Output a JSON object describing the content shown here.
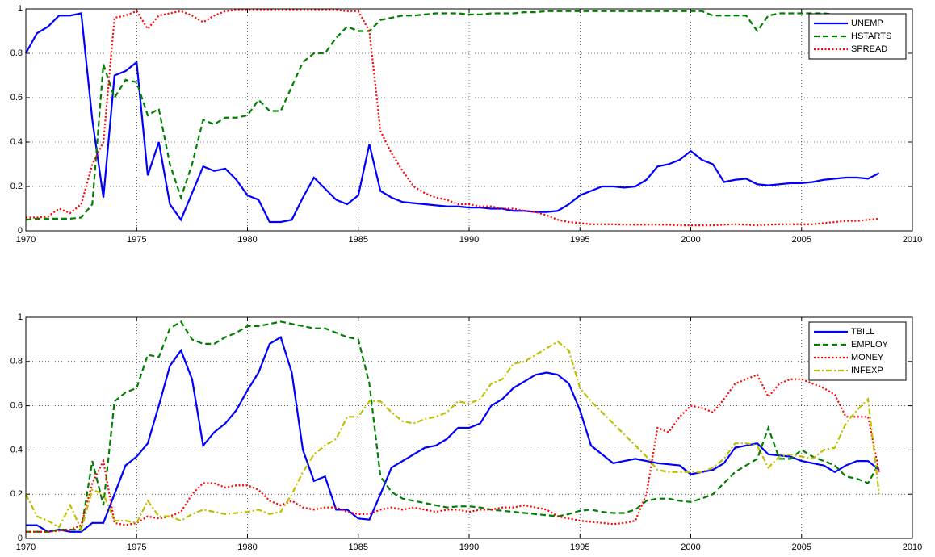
{
  "chart_data": [
    {
      "type": "line",
      "legend": "upper right",
      "grid": true,
      "xlim": [
        1970,
        2010
      ],
      "xticks": [
        1970,
        1975,
        1980,
        1985,
        1990,
        1995,
        2000,
        2005,
        2010
      ],
      "ylim": [
        0,
        1
      ],
      "yticks": [
        0,
        0.2,
        0.4,
        0.6,
        0.8,
        1
      ],
      "x": [
        1970,
        1970.5,
        1971,
        1971.5,
        1972,
        1972.5,
        1973,
        1973.5,
        1974,
        1974.5,
        1975,
        1975.5,
        1976,
        1976.5,
        1977,
        1977.5,
        1978,
        1978.5,
        1979,
        1979.5,
        1980,
        1980.5,
        1981,
        1981.5,
        1982,
        1982.5,
        1983,
        1983.5,
        1984,
        1984.5,
        1985,
        1985.5,
        1986,
        1986.5,
        1987,
        1987.5,
        1988,
        1988.5,
        1989,
        1989.5,
        1990,
        1990.5,
        1991,
        1991.5,
        1992,
        1992.5,
        1993,
        1993.5,
        1994,
        1994.5,
        1995,
        1995.5,
        1996,
        1996.5,
        1997,
        1997.5,
        1998,
        1998.5,
        1999,
        1999.5,
        2000,
        2000.5,
        2001,
        2001.5,
        2002,
        2002.5,
        2003,
        2003.5,
        2004,
        2004.5,
        2005,
        2005.5,
        2006,
        2006.5,
        2007,
        2007.5,
        2008,
        2008.5
      ],
      "series": [
        {
          "name": "UNEMP",
          "color": "#0000ff",
          "dash": "solid",
          "values": [
            0.8,
            0.89,
            0.92,
            0.97,
            0.97,
            0.98,
            0.5,
            0.15,
            0.7,
            0.72,
            0.76,
            0.25,
            0.4,
            0.12,
            0.05,
            0.17,
            0.29,
            0.27,
            0.28,
            0.23,
            0.16,
            0.14,
            0.04,
            0.04,
            0.05,
            0.15,
            0.24,
            0.19,
            0.14,
            0.12,
            0.16,
            0.39,
            0.18,
            0.15,
            0.13,
            0.125,
            0.12,
            0.115,
            0.11,
            0.11,
            0.105,
            0.105,
            0.1,
            0.1,
            0.09,
            0.09,
            0.085,
            0.085,
            0.09,
            0.12,
            0.16,
            0.18,
            0.2,
            0.2,
            0.195,
            0.2,
            0.23,
            0.29,
            0.3,
            0.32,
            0.36,
            0.32,
            0.3,
            0.22,
            0.23,
            0.235,
            0.21,
            0.205,
            0.21,
            0.215,
            0.215,
            0.22,
            0.23,
            0.235,
            0.24,
            0.24,
            0.235,
            0.26
          ]
        },
        {
          "name": "HSTARTS",
          "color": "#008000",
          "dash": "dashed",
          "values": [
            0.05,
            0.055,
            0.055,
            0.055,
            0.055,
            0.06,
            0.12,
            0.75,
            0.6,
            0.68,
            0.67,
            0.52,
            0.55,
            0.3,
            0.15,
            0.3,
            0.5,
            0.48,
            0.51,
            0.51,
            0.52,
            0.59,
            0.54,
            0.54,
            0.65,
            0.76,
            0.8,
            0.8,
            0.87,
            0.92,
            0.9,
            0.9,
            0.95,
            0.96,
            0.97,
            0.97,
            0.975,
            0.98,
            0.98,
            0.98,
            0.975,
            0.975,
            0.98,
            0.98,
            0.98,
            0.985,
            0.985,
            0.99,
            0.99,
            0.99,
            0.99,
            0.99,
            0.99,
            0.99,
            0.99,
            0.99,
            0.99,
            0.99,
            0.99,
            0.99,
            0.99,
            0.99,
            0.97,
            0.97,
            0.97,
            0.97,
            0.9,
            0.97,
            0.98,
            0.98,
            0.98,
            0.98,
            0.98,
            0.975,
            0.975,
            0.97,
            0.96,
            0.95
          ]
        },
        {
          "name": "SPREAD",
          "color": "#ff0000",
          "dash": "dotted",
          "values": [
            0.06,
            0.06,
            0.065,
            0.1,
            0.08,
            0.12,
            0.3,
            0.4,
            0.96,
            0.97,
            0.99,
            0.91,
            0.97,
            0.98,
            0.99,
            0.97,
            0.94,
            0.97,
            0.99,
            0.995,
            0.995,
            0.995,
            0.995,
            0.995,
            0.995,
            0.995,
            0.995,
            0.995,
            0.995,
            0.99,
            0.99,
            0.9,
            0.45,
            0.35,
            0.27,
            0.2,
            0.17,
            0.15,
            0.14,
            0.12,
            0.12,
            0.11,
            0.11,
            0.1,
            0.1,
            0.09,
            0.085,
            0.07,
            0.05,
            0.04,
            0.035,
            0.03,
            0.03,
            0.03,
            0.028,
            0.028,
            0.028,
            0.028,
            0.028,
            0.025,
            0.025,
            0.025,
            0.025,
            0.028,
            0.03,
            0.028,
            0.025,
            0.028,
            0.03,
            0.03,
            0.03,
            0.03,
            0.035,
            0.04,
            0.045,
            0.045,
            0.05,
            0.055
          ]
        }
      ]
    },
    {
      "type": "line",
      "legend": "upper right",
      "grid": true,
      "xlim": [
        1970,
        2010
      ],
      "xticks": [
        1970,
        1975,
        1980,
        1985,
        1990,
        1995,
        2000,
        2005,
        2010
      ],
      "ylim": [
        0,
        1
      ],
      "yticks": [
        0,
        0.2,
        0.4,
        0.6,
        0.8,
        1
      ],
      "x": [
        1970,
        1970.5,
        1971,
        1971.5,
        1972,
        1972.5,
        1973,
        1973.5,
        1974,
        1974.5,
        1975,
        1975.5,
        1976,
        1976.5,
        1977,
        1977.5,
        1978,
        1978.5,
        1979,
        1979.5,
        1980,
        1980.5,
        1981,
        1981.5,
        1982,
        1982.5,
        1983,
        1983.5,
        1984,
        1984.5,
        1985,
        1985.5,
        1986,
        1986.5,
        1987,
        1987.5,
        1988,
        1988.5,
        1989,
        1989.5,
        1990,
        1990.5,
        1991,
        1991.5,
        1992,
        1992.5,
        1993,
        1993.5,
        1994,
        1994.5,
        1995,
        1995.5,
        1996,
        1996.5,
        1997,
        1997.5,
        1998,
        1998.5,
        1999,
        1999.5,
        2000,
        2000.5,
        2001,
        2001.5,
        2002,
        2002.5,
        2003,
        2003.5,
        2004,
        2004.5,
        2005,
        2005.5,
        2006,
        2006.5,
        2007,
        2007.5,
        2008,
        2008.5
      ],
      "series": [
        {
          "name": "TBILL",
          "color": "#0000ff",
          "dash": "solid",
          "values": [
            0.06,
            0.06,
            0.03,
            0.04,
            0.03,
            0.03,
            0.07,
            0.07,
            0.2,
            0.33,
            0.37,
            0.43,
            0.6,
            0.78,
            0.85,
            0.72,
            0.42,
            0.48,
            0.52,
            0.58,
            0.67,
            0.75,
            0.88,
            0.91,
            0.75,
            0.4,
            0.26,
            0.28,
            0.13,
            0.13,
            0.09,
            0.085,
            0.2,
            0.32,
            0.35,
            0.38,
            0.41,
            0.42,
            0.45,
            0.5,
            0.5,
            0.52,
            0.6,
            0.63,
            0.68,
            0.71,
            0.74,
            0.75,
            0.74,
            0.7,
            0.58,
            0.42,
            0.38,
            0.34,
            0.35,
            0.36,
            0.35,
            0.34,
            0.335,
            0.33,
            0.29,
            0.3,
            0.31,
            0.34,
            0.41,
            0.42,
            0.43,
            0.38,
            0.375,
            0.37,
            0.35,
            0.34,
            0.33,
            0.3,
            0.33,
            0.35,
            0.35,
            0.31
          ]
        },
        {
          "name": "EMPLOY",
          "color": "#008000",
          "dash": "dashed",
          "values": [
            0.03,
            0.03,
            0.03,
            0.04,
            0.04,
            0.04,
            0.35,
            0.15,
            0.62,
            0.66,
            0.68,
            0.83,
            0.82,
            0.95,
            0.98,
            0.9,
            0.88,
            0.88,
            0.91,
            0.93,
            0.96,
            0.96,
            0.97,
            0.98,
            0.97,
            0.96,
            0.95,
            0.95,
            0.93,
            0.91,
            0.9,
            0.7,
            0.28,
            0.21,
            0.18,
            0.17,
            0.16,
            0.15,
            0.14,
            0.145,
            0.145,
            0.14,
            0.13,
            0.125,
            0.12,
            0.115,
            0.11,
            0.105,
            0.1,
            0.11,
            0.125,
            0.13,
            0.12,
            0.115,
            0.115,
            0.13,
            0.17,
            0.18,
            0.18,
            0.17,
            0.165,
            0.18,
            0.2,
            0.25,
            0.3,
            0.33,
            0.36,
            0.5,
            0.36,
            0.36,
            0.4,
            0.37,
            0.35,
            0.33,
            0.28,
            0.27,
            0.25,
            0.34
          ]
        },
        {
          "name": "MONEY",
          "color": "#ff0000",
          "dash": "dotted",
          "values": [
            0.03,
            0.03,
            0.03,
            0.035,
            0.04,
            0.06,
            0.25,
            0.35,
            0.07,
            0.06,
            0.07,
            0.1,
            0.09,
            0.1,
            0.12,
            0.2,
            0.25,
            0.25,
            0.23,
            0.24,
            0.24,
            0.22,
            0.17,
            0.15,
            0.17,
            0.14,
            0.13,
            0.14,
            0.14,
            0.12,
            0.11,
            0.11,
            0.13,
            0.14,
            0.13,
            0.14,
            0.13,
            0.12,
            0.13,
            0.13,
            0.12,
            0.13,
            0.13,
            0.14,
            0.14,
            0.15,
            0.14,
            0.13,
            0.1,
            0.09,
            0.08,
            0.075,
            0.07,
            0.065,
            0.07,
            0.08,
            0.2,
            0.5,
            0.48,
            0.55,
            0.6,
            0.59,
            0.57,
            0.63,
            0.7,
            0.72,
            0.74,
            0.64,
            0.7,
            0.72,
            0.72,
            0.7,
            0.68,
            0.65,
            0.55,
            0.55,
            0.55,
            0.3
          ]
        },
        {
          "name": "INFEXP",
          "color": "#bfbf00",
          "dash": "dashdot",
          "values": [
            0.2,
            0.1,
            0.08,
            0.05,
            0.15,
            0.04,
            0.22,
            0.2,
            0.08,
            0.08,
            0.07,
            0.17,
            0.1,
            0.1,
            0.08,
            0.11,
            0.13,
            0.12,
            0.11,
            0.115,
            0.12,
            0.13,
            0.11,
            0.12,
            0.2,
            0.3,
            0.38,
            0.42,
            0.45,
            0.55,
            0.55,
            0.62,
            0.62,
            0.57,
            0.53,
            0.52,
            0.54,
            0.55,
            0.57,
            0.62,
            0.61,
            0.63,
            0.7,
            0.72,
            0.79,
            0.8,
            0.83,
            0.86,
            0.89,
            0.85,
            0.68,
            0.62,
            0.57,
            0.52,
            0.47,
            0.42,
            0.37,
            0.31,
            0.3,
            0.3,
            0.3,
            0.3,
            0.32,
            0.36,
            0.43,
            0.43,
            0.42,
            0.32,
            0.37,
            0.38,
            0.37,
            0.36,
            0.4,
            0.41,
            0.52,
            0.58,
            0.63,
            0.2
          ]
        }
      ]
    }
  ]
}
